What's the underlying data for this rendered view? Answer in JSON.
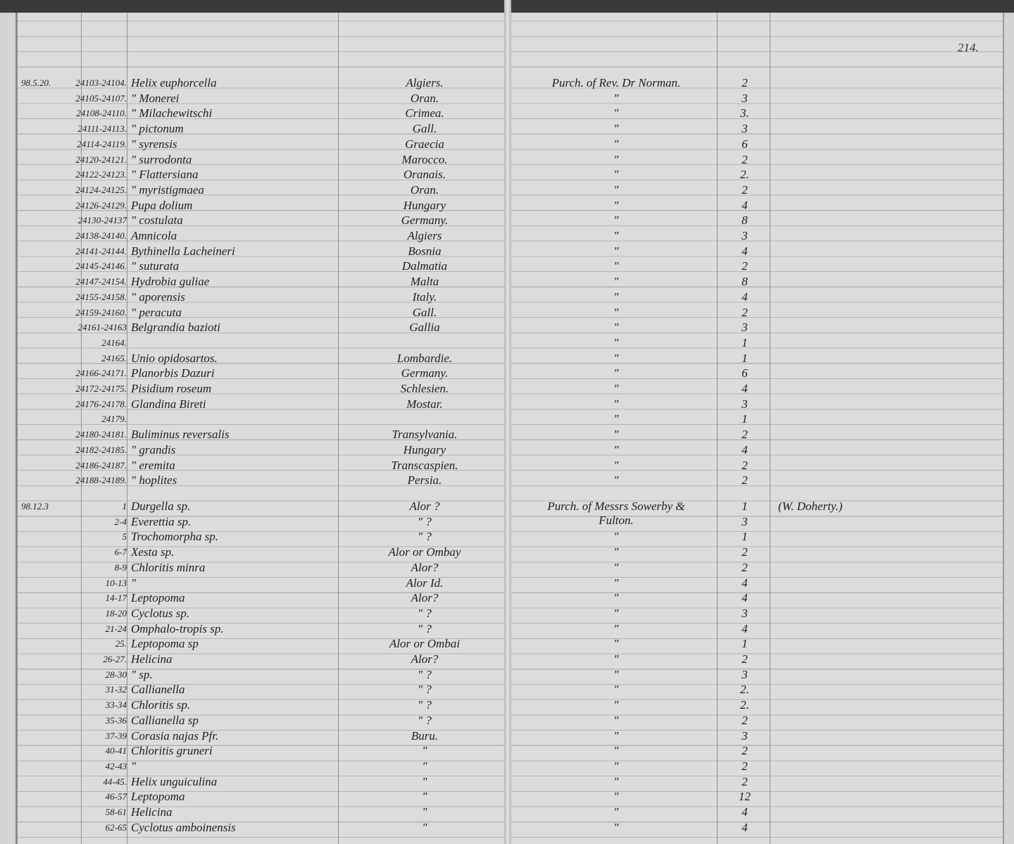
{
  "page_number": "214.",
  "entries": [
    {
      "date": "98.5.20.",
      "reg": "24103-24104.",
      "name": "Helix euphorcella",
      "locality": "Algiers.",
      "source": "Purch. of Rev. Dr Norman.",
      "count": "2"
    },
    {
      "reg": "24105-24107.",
      "name": "\" Monerei",
      "locality": "Oran.",
      "source": "\"",
      "count": "3"
    },
    {
      "reg": "24108-24110.",
      "name": "\" Milachewitschi",
      "locality": "Crimea.",
      "source": "\"",
      "count": "3."
    },
    {
      "reg": "24111-24113.",
      "name": "\" pictonum",
      "locality": "Gall.",
      "source": "\"",
      "count": "3"
    },
    {
      "reg": "24114-24119.",
      "name": "\" syrensis",
      "locality": "Graecia",
      "source": "\"",
      "count": "6"
    },
    {
      "reg": "24120-24121.",
      "name": "\" surrodonta",
      "locality": "Marocco.",
      "source": "\"",
      "count": "2"
    },
    {
      "reg": "24122-24123.",
      "name": "\" Flattersiana",
      "locality": "Oranais.",
      "source": "\"",
      "count": "2."
    },
    {
      "reg": "24124-24125.",
      "name": "\" myristigmaea",
      "locality": "Oran.",
      "source": "\"",
      "count": "2"
    },
    {
      "reg": "24126-24129.",
      "name": "Pupa dolium",
      "locality": "Hungary",
      "source": "\"",
      "count": "4"
    },
    {
      "reg": "24130-24137",
      "name": "\" costulata",
      "locality": "Germany.",
      "source": "\"",
      "count": "8"
    },
    {
      "reg": "24138-24140.",
      "name": "Amnicola",
      "locality": "Algiers",
      "source": "\"",
      "count": "3"
    },
    {
      "reg": "24141-24144.",
      "name": "Bythinella Lacheineri",
      "locality": "Bosnia",
      "source": "\"",
      "count": "4"
    },
    {
      "reg": "24145-24146.",
      "name": "\" suturata",
      "locality": "Dalmatia",
      "source": "\"",
      "count": "2"
    },
    {
      "reg": "24147-24154.",
      "name": "Hydrobia guliae",
      "locality": "Malta",
      "source": "\"",
      "count": "8"
    },
    {
      "reg": "24155-24158.",
      "name": "\" aporensis",
      "locality": "Italy.",
      "source": "\"",
      "count": "4"
    },
    {
      "reg": "24159-24160.",
      "name": "\" peracuta",
      "locality": "Gall.",
      "source": "\"",
      "count": "2"
    },
    {
      "reg": "24161-24163",
      "name": "Belgrandia bazioti",
      "locality": "Gallia",
      "source": "\"",
      "count": "3"
    },
    {
      "reg": "24164.",
      "source": "\"",
      "count": "1"
    },
    {
      "reg": "24165.",
      "name": "Unio opidosartos.",
      "locality": "Lombardie.",
      "source": "\"",
      "count": "1"
    },
    {
      "reg": "24166-24171.",
      "name": "Planorbis Dazuri",
      "locality": "Germany.",
      "source": "\"",
      "count": "6"
    },
    {
      "reg": "24172-24175.",
      "name": "Pisidium roseum",
      "locality": "Schlesien.",
      "source": "\"",
      "count": "4"
    },
    {
      "reg": "24176-24178.",
      "name": "Glandina Bireti",
      "locality": "Mostar.",
      "source": "\"",
      "count": "3"
    },
    {
      "reg": "24179.",
      "source": "\"",
      "count": "1"
    },
    {
      "reg": "24180-24181.",
      "name": "Buliminus reversalis",
      "locality": "Transylvania.",
      "source": "\"",
      "count": "2"
    },
    {
      "reg": "24182-24185.",
      "name": "\" grandis",
      "locality": "Hungary",
      "source": "\"",
      "count": "4"
    },
    {
      "reg": "24186-24187.",
      "name": "\" eremita",
      "locality": "Transcaspien.",
      "source": "\"",
      "count": "2"
    },
    {
      "reg": "24188-24189.",
      "name": "\" hoplites",
      "locality": "Persia.",
      "source": "\"",
      "count": "2"
    },
    {
      "date": "98.12.3",
      "reg": "1",
      "name": "Durgella sp.",
      "locality": "Alor ?",
      "source": "Purch. of Messrs Sowerby & Fulton.",
      "count": "1",
      "note": "(W. Doherty.)"
    },
    {
      "reg": "2-4",
      "name": "Everettia sp.",
      "locality": "\" ?",
      "count": "3"
    },
    {
      "reg": "5",
      "name": "Trochomorpha sp.",
      "locality": "\" ?",
      "source": "\"",
      "count": "1"
    },
    {
      "reg": "6-7",
      "name": "Xesta sp.",
      "locality": "Alor or Ombay",
      "source": "\"",
      "count": "2"
    },
    {
      "reg": "8-9",
      "name": "Chloritis minra",
      "locality": "Alor?",
      "source": "\"",
      "count": "2"
    },
    {
      "reg": "10-13",
      "name": "\"",
      "locality": "Alor Id.",
      "source": "\"",
      "count": "4"
    },
    {
      "reg": "14-17",
      "name": "Leptopoma",
      "locality": "Alor?",
      "source": "\"",
      "count": "4"
    },
    {
      "reg": "18-20",
      "name": "Cyclotus sp.",
      "locality": "\" ?",
      "source": "\"",
      "count": "3"
    },
    {
      "reg": "21-24",
      "name": "Omphalo-tropis sp.",
      "locality": "\" ?",
      "source": "\"",
      "count": "4"
    },
    {
      "reg": "25.",
      "name": "Leptopoma sp",
      "locality": "Alor or Ombai",
      "source": "\"",
      "count": "1"
    },
    {
      "reg": "26-27.",
      "name": "Helicina",
      "locality": "Alor?",
      "source": "\"",
      "count": "2"
    },
    {
      "reg": "28-30",
      "name": "\" sp.",
      "locality": "\" ?",
      "source": "\"",
      "count": "3"
    },
    {
      "reg": "31-32",
      "name": "Callianella",
      "locality": "\" ?",
      "source": "\"",
      "count": "2."
    },
    {
      "reg": "33-34",
      "name": "Chloritis sp.",
      "locality": "\" ?",
      "source": "\"",
      "count": "2."
    },
    {
      "reg": "35-36",
      "name": "Callianella sp",
      "locality": "\" ?",
      "source": "\"",
      "count": "2"
    },
    {
      "reg": "37-39",
      "name": "Corasia najas Pfr.",
      "locality": "Buru.",
      "source": "\"",
      "count": "3"
    },
    {
      "reg": "40-41",
      "name": "Chloritis gruneri",
      "locality": "\"",
      "source": "\"",
      "count": "2"
    },
    {
      "reg": "42-43",
      "name": "\"",
      "locality": "\"",
      "source": "\"",
      "count": "2"
    },
    {
      "reg": "44-45.",
      "name": "Helix unguiculina",
      "locality": "\"",
      "source": "\"",
      "count": "2"
    },
    {
      "reg": "46-57",
      "name": "Leptopoma",
      "locality": "\"",
      "source": "\"",
      "count": "12"
    },
    {
      "reg": "58-61",
      "name": "Helicina",
      "locality": "\"",
      "source": "\"",
      "count": "4"
    },
    {
      "reg": "62-65",
      "name": "Cyclotus amboinensis",
      "locality": "\"",
      "source": "\"",
      "count": "4"
    }
  ]
}
